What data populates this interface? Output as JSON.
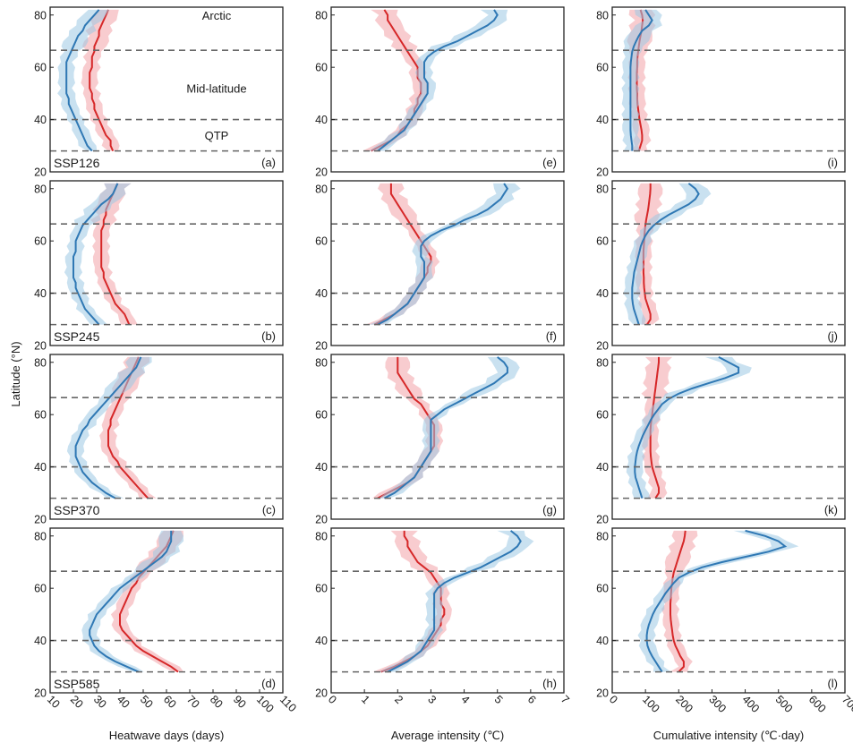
{
  "figure": {
    "y_axis_label": "Latitude (°N)",
    "row_scenarios": [
      "SSP126",
      "SSP245",
      "SSP370",
      "SSP585"
    ],
    "region_labels": [
      "Arctic",
      "Mid-latitude",
      "QTP"
    ],
    "region_boundaries_lat": [
      28,
      40,
      66.5
    ],
    "colors": {
      "series_a_line": "#d62728",
      "series_a_band": "#f2a3a8",
      "series_b_line": "#2f78b4",
      "series_b_band": "#9dc9e3",
      "boundary": "#666666",
      "frame": "#222222"
    }
  },
  "chart_data": [
    {
      "type": "line",
      "column": "heatwave-days",
      "xlabel": "Heatwave days (days)",
      "ylabel": "Latitude (°N)",
      "xlim": [
        10,
        110
      ],
      "ylim": [
        20,
        83
      ],
      "xticks": [
        10,
        20,
        30,
        40,
        50,
        60,
        70,
        80,
        90,
        100,
        110
      ],
      "yticks": [
        20,
        40,
        60,
        80
      ],
      "latitudes": [
        28,
        30,
        32,
        34,
        36,
        38,
        40,
        42,
        44,
        46,
        48,
        50,
        52,
        54,
        56,
        58,
        60,
        62,
        64,
        66,
        68,
        70,
        72,
        74,
        76,
        78,
        80,
        82
      ],
      "panels": [
        {
          "letter": "(a)",
          "scenario": "SSP126",
          "series_a": [
            37,
            36,
            36,
            34,
            33,
            32,
            31,
            30,
            29,
            29,
            28,
            28,
            27,
            27,
            27,
            27,
            28,
            28,
            28,
            29,
            29,
            30,
            31,
            31,
            32,
            33,
            34,
            35
          ],
          "series_b": [
            28,
            26,
            25,
            24,
            23,
            22,
            21,
            20,
            19,
            18,
            18,
            17,
            17,
            17,
            17,
            17,
            17,
            17,
            18,
            19,
            20,
            21,
            22,
            24,
            25,
            27,
            29,
            31
          ]
        },
        {
          "letter": "(b)",
          "scenario": "SSP245",
          "series_a": [
            44,
            43,
            42,
            40,
            38,
            37,
            36,
            35,
            34,
            33,
            33,
            32,
            32,
            32,
            32,
            32,
            32,
            32,
            32,
            33,
            33,
            34,
            34,
            35,
            36,
            37,
            38,
            39
          ],
          "series_b": [
            31,
            29,
            27,
            25,
            24,
            23,
            22,
            21,
            21,
            20,
            20,
            20,
            20,
            20,
            21,
            21,
            21,
            22,
            23,
            24,
            26,
            28,
            30,
            32,
            35,
            37,
            38,
            39
          ]
        },
        {
          "letter": "(c)",
          "scenario": "SSP370",
          "series_a": [
            52,
            50,
            48,
            46,
            44,
            42,
            40,
            39,
            37,
            36,
            35,
            35,
            35,
            35,
            36,
            36,
            37,
            38,
            39,
            40,
            41,
            42,
            43,
            44,
            45,
            46,
            47,
            48
          ],
          "series_b": [
            38,
            34,
            31,
            28,
            26,
            24,
            23,
            22,
            21,
            21,
            21,
            22,
            23,
            24,
            26,
            27,
            29,
            31,
            33,
            35,
            37,
            39,
            41,
            43,
            45,
            47,
            48,
            49
          ]
        },
        {
          "letter": "(d)",
          "scenario": "SSP585",
          "series_a": [
            65,
            62,
            58,
            54,
            50,
            47,
            45,
            43,
            41,
            40,
            40,
            40,
            41,
            42,
            43,
            44,
            45,
            47,
            48,
            50,
            52,
            54,
            56,
            58,
            60,
            61,
            62,
            63
          ],
          "series_b": [
            48,
            43,
            38,
            34,
            31,
            29,
            28,
            27,
            27,
            28,
            29,
            30,
            32,
            34,
            36,
            38,
            40,
            43,
            46,
            49,
            52,
            55,
            58,
            60,
            61,
            62,
            62,
            62
          ]
        }
      ]
    },
    {
      "type": "line",
      "column": "average-intensity",
      "xlabel": "Average intensity (℃)",
      "ylabel": "Latitude (°N)",
      "xlim": [
        0,
        7
      ],
      "ylim": [
        20,
        83
      ],
      "xticks": [
        0,
        1,
        2,
        3,
        4,
        5,
        6,
        7
      ],
      "yticks": [
        20,
        40,
        60,
        80
      ],
      "latitudes": [
        28,
        30,
        32,
        34,
        36,
        38,
        40,
        42,
        44,
        46,
        48,
        50,
        52,
        54,
        56,
        58,
        60,
        62,
        64,
        66,
        68,
        70,
        72,
        74,
        76,
        78,
        80,
        82
      ],
      "panels": [
        {
          "letter": "(e)",
          "scenario": "SSP126",
          "series_a": [
            1.2,
            1.5,
            1.8,
            2.0,
            2.1,
            2.3,
            2.4,
            2.5,
            2.5,
            2.6,
            2.6,
            2.7,
            2.7,
            2.7,
            2.6,
            2.6,
            2.6,
            2.5,
            2.4,
            2.3,
            2.2,
            2.1,
            2.0,
            1.9,
            1.8,
            1.7,
            1.7,
            1.6
          ],
          "series_b": [
            1.4,
            1.6,
            1.8,
            2.0,
            2.2,
            2.3,
            2.4,
            2.5,
            2.6,
            2.7,
            2.8,
            2.9,
            2.9,
            2.9,
            2.8,
            2.8,
            2.8,
            2.8,
            2.9,
            3.1,
            3.4,
            3.8,
            4.1,
            4.4,
            4.7,
            4.9,
            5.0,
            4.9
          ]
        },
        {
          "letter": "(f)",
          "scenario": "SSP245",
          "series_a": [
            1.3,
            1.6,
            1.9,
            2.1,
            2.3,
            2.4,
            2.5,
            2.6,
            2.7,
            2.8,
            2.9,
            2.9,
            3.0,
            3.0,
            2.9,
            2.8,
            2.7,
            2.6,
            2.5,
            2.4,
            2.3,
            2.2,
            2.1,
            2.0,
            1.9,
            1.8,
            1.8,
            1.8
          ],
          "series_b": [
            1.4,
            1.7,
            1.9,
            2.1,
            2.3,
            2.4,
            2.5,
            2.6,
            2.7,
            2.8,
            2.8,
            2.8,
            2.8,
            2.7,
            2.7,
            2.7,
            2.8,
            3.0,
            3.3,
            3.7,
            4.0,
            4.4,
            4.7,
            4.9,
            5.1,
            5.2,
            5.3,
            5.2
          ]
        },
        {
          "letter": "(g)",
          "scenario": "SSP370",
          "series_a": [
            1.4,
            1.7,
            2.0,
            2.3,
            2.5,
            2.6,
            2.7,
            2.8,
            2.9,
            3.0,
            3.1,
            3.1,
            3.1,
            3.1,
            3.1,
            3.0,
            2.9,
            2.8,
            2.7,
            2.5,
            2.4,
            2.3,
            2.2,
            2.1,
            2.0,
            2.0,
            2.0,
            2.0
          ],
          "series_b": [
            1.6,
            1.9,
            2.1,
            2.3,
            2.5,
            2.6,
            2.7,
            2.8,
            2.9,
            3.0,
            3.0,
            3.0,
            3.0,
            3.0,
            3.0,
            3.0,
            3.2,
            3.4,
            3.7,
            4.0,
            4.3,
            4.6,
            4.9,
            5.1,
            5.3,
            5.3,
            5.2,
            5.0
          ]
        },
        {
          "letter": "(h)",
          "scenario": "SSP585",
          "series_a": [
            1.5,
            1.9,
            2.2,
            2.5,
            2.7,
            2.9,
            3.0,
            3.1,
            3.2,
            3.3,
            3.3,
            3.4,
            3.4,
            3.3,
            3.3,
            3.3,
            3.3,
            3.2,
            3.1,
            3.0,
            2.8,
            2.6,
            2.5,
            2.4,
            2.3,
            2.3,
            2.2,
            2.2
          ],
          "series_b": [
            1.7,
            2.0,
            2.3,
            2.5,
            2.7,
            2.8,
            2.9,
            3.0,
            3.1,
            3.1,
            3.1,
            3.1,
            3.1,
            3.1,
            3.1,
            3.1,
            3.2,
            3.4,
            3.7,
            4.1,
            4.5,
            4.8,
            5.1,
            5.4,
            5.6,
            5.7,
            5.6,
            5.4
          ]
        }
      ]
    },
    {
      "type": "line",
      "column": "cumulative-intensity",
      "xlabel": "Cumulative intensity (℃·day)",
      "ylabel": "Latitude (°N)",
      "xlim": [
        0,
        700
      ],
      "ylim": [
        20,
        83
      ],
      "xticks": [
        0,
        100,
        200,
        300,
        400,
        500,
        600,
        700
      ],
      "yticks": [
        20,
        40,
        60,
        80
      ],
      "latitudes": [
        28,
        30,
        32,
        34,
        36,
        38,
        40,
        42,
        44,
        46,
        48,
        50,
        52,
        54,
        56,
        58,
        60,
        62,
        64,
        66,
        68,
        70,
        72,
        74,
        76,
        78,
        80,
        82
      ],
      "panels": [
        {
          "letter": "(i)",
          "scenario": "SSP126",
          "series_a": [
            80,
            85,
            90,
            90,
            88,
            85,
            82,
            80,
            78,
            76,
            75,
            75,
            74,
            74,
            74,
            74,
            75,
            75,
            76,
            78,
            80,
            82,
            85,
            88,
            90,
            92,
            90,
            85
          ],
          "series_b": [
            60,
            60,
            58,
            56,
            55,
            55,
            55,
            55,
            55,
            55,
            55,
            55,
            55,
            55,
            55,
            55,
            55,
            56,
            58,
            60,
            65,
            72,
            80,
            90,
            110,
            120,
            110,
            100
          ]
        },
        {
          "letter": "(j)",
          "scenario": "SSP245",
          "series_a": [
            105,
            115,
            115,
            110,
            105,
            100,
            98,
            96,
            95,
            95,
            94,
            94,
            94,
            94,
            94,
            95,
            96,
            97,
            98,
            100,
            102,
            105,
            108,
            110,
            112,
            114,
            115,
            115
          ],
          "series_b": [
            80,
            75,
            70,
            65,
            62,
            60,
            60,
            60,
            62,
            64,
            66,
            70,
            74,
            78,
            82,
            86,
            92,
            100,
            110,
            125,
            145,
            170,
            200,
            230,
            250,
            260,
            250,
            230
          ]
        },
        {
          "letter": "(k)",
          "scenario": "SSP370",
          "series_a": [
            130,
            140,
            140,
            135,
            130,
            125,
            120,
            118,
            116,
            115,
            115,
            115,
            115,
            115,
            116,
            118,
            120,
            122,
            124,
            126,
            128,
            130,
            132,
            134,
            136,
            138,
            140,
            140
          ],
          "series_b": [
            90,
            85,
            80,
            75,
            70,
            68,
            68,
            70,
            72,
            75,
            80,
            86,
            92,
            100,
            108,
            116,
            126,
            138,
            150,
            170,
            200,
            240,
            290,
            340,
            380,
            380,
            350,
            320
          ]
        },
        {
          "letter": "(l)",
          "scenario": "SSP585",
          "series_a": [
            200,
            215,
            215,
            205,
            198,
            190,
            185,
            182,
            180,
            178,
            176,
            175,
            175,
            175,
            176,
            177,
            178,
            180,
            182,
            185,
            190,
            195,
            200,
            205,
            210,
            215,
            218,
            220
          ],
          "series_b": [
            150,
            140,
            130,
            120,
            112,
            106,
            104,
            104,
            106,
            110,
            116,
            122,
            130,
            140,
            150,
            160,
            172,
            185,
            200,
            230,
            270,
            330,
            400,
            470,
            520,
            500,
            460,
            400
          ]
        }
      ]
    }
  ]
}
